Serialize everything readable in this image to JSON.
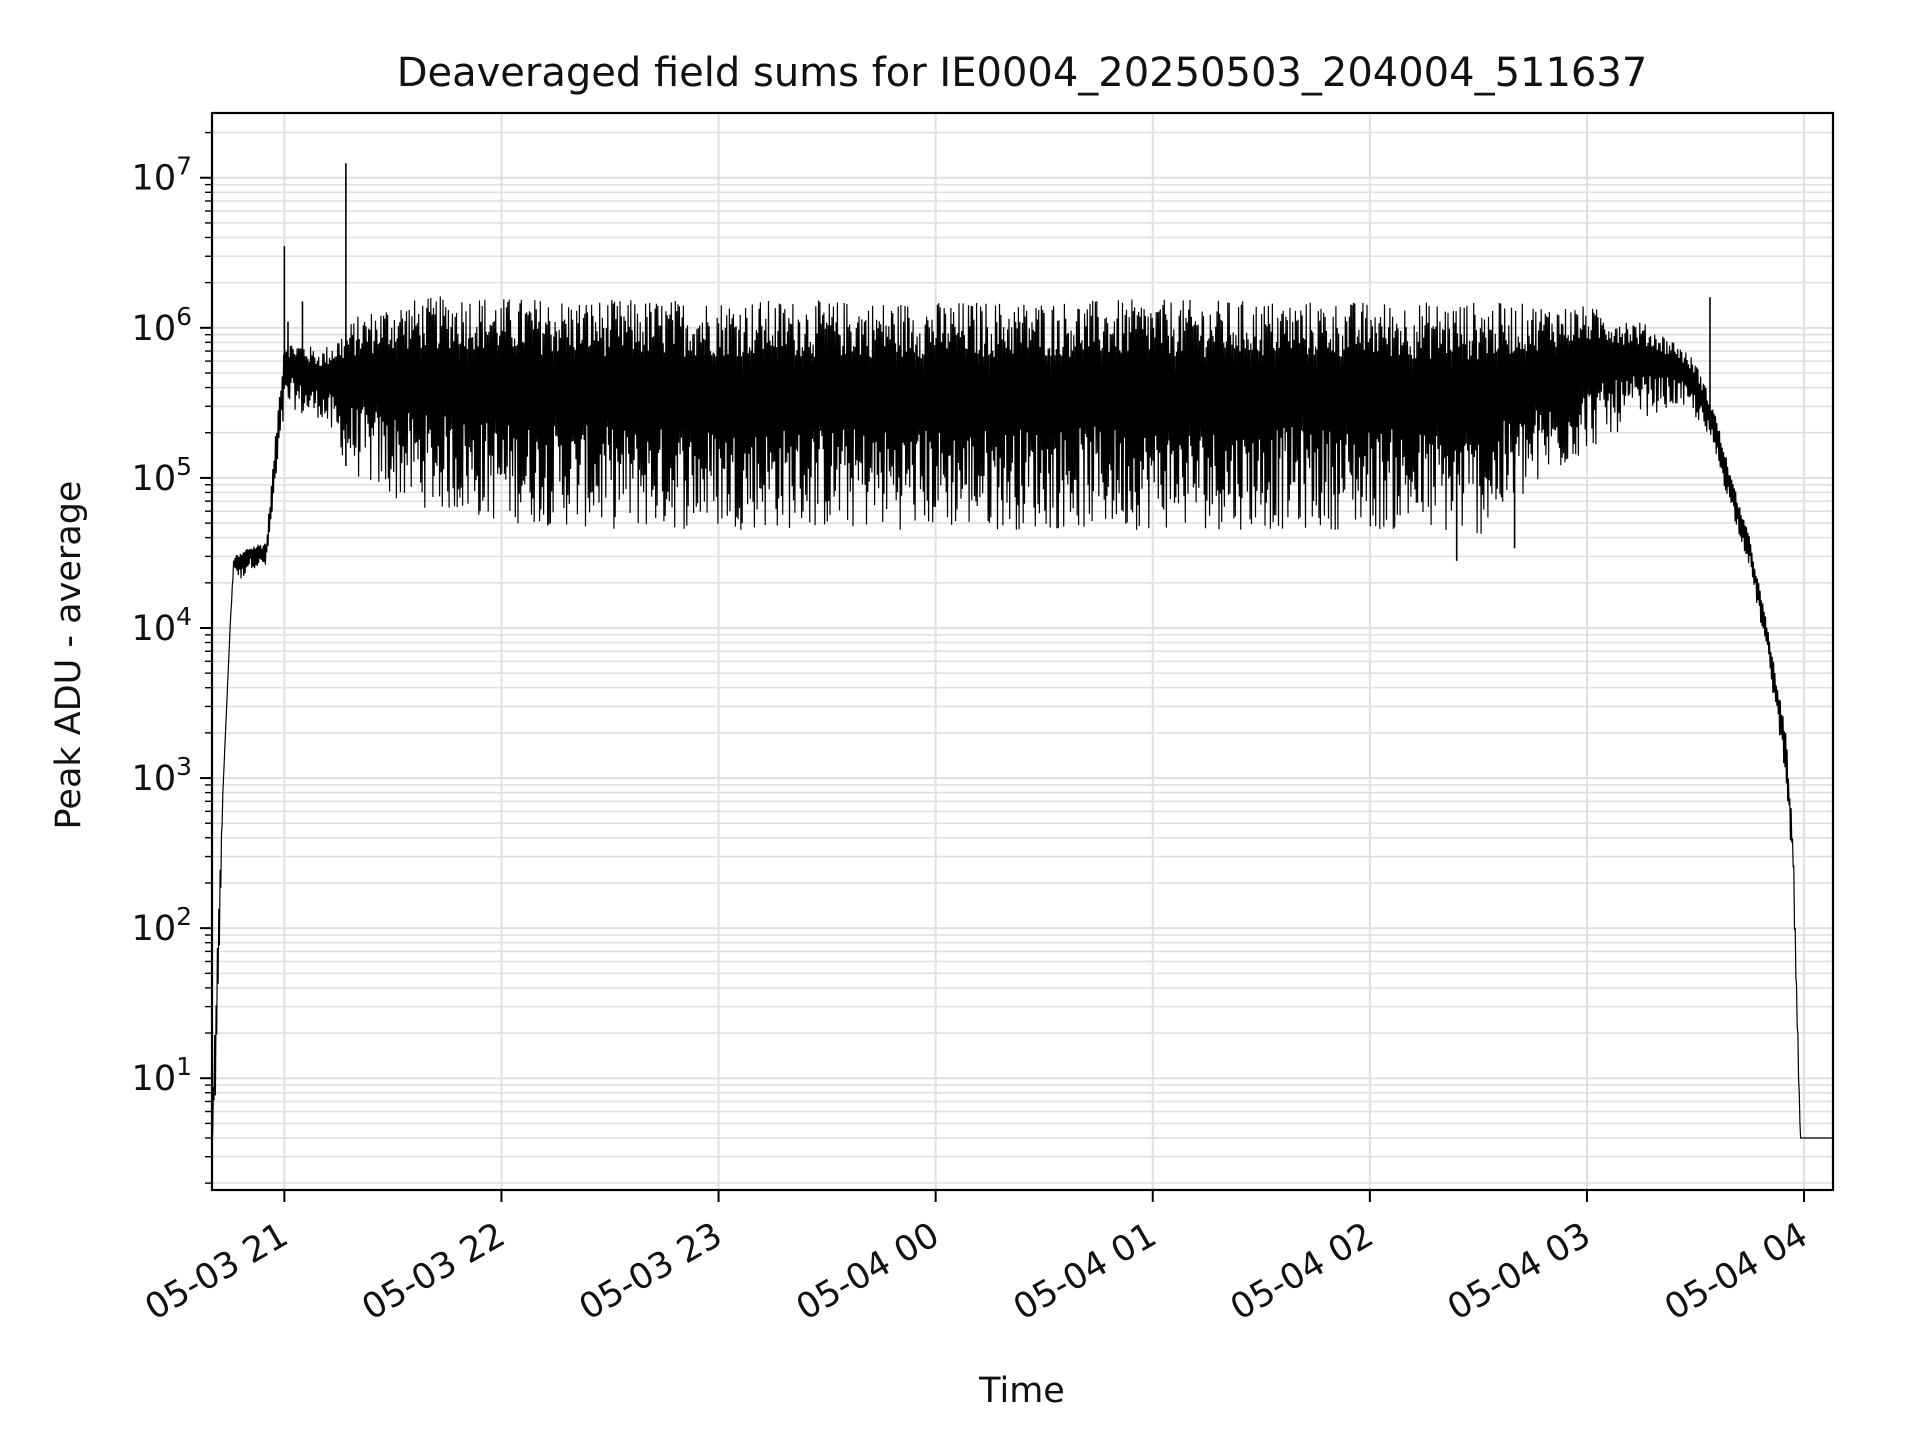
{
  "chart_data": {
    "type": "line",
    "title": "Deaveraged field sums for IE0004_20250503_204004_511637",
    "xlabel": "Time",
    "ylabel": "Peak ADU - average",
    "yscale": "log",
    "grid": true,
    "legend": "none",
    "line_color": "#000000",
    "grid_color": "#e0e0e0",
    "xlim": [
      "2025-05-03 20:40",
      "2025-05-04 04:08"
    ],
    "ylim": [
      1.8,
      27000000
    ],
    "x_ticks": [
      "05-03 21",
      "05-03 22",
      "05-03 23",
      "05-04 00",
      "05-04 01",
      "05-04 02",
      "05-04 03",
      "05-04 04"
    ],
    "y_ticks": [
      {
        "base": "10",
        "exp": "1",
        "value": 10
      },
      {
        "base": "10",
        "exp": "2",
        "value": 100
      },
      {
        "base": "10",
        "exp": "3",
        "value": 1000
      },
      {
        "base": "10",
        "exp": "4",
        "value": 10000
      },
      {
        "base": "10",
        "exp": "5",
        "value": 100000
      },
      {
        "base": "10",
        "exp": "6",
        "value": 1000000
      },
      {
        "base": "10",
        "exp": "7",
        "value": 10000000
      }
    ],
    "envelope": {
      "x": [
        "2025-05-03 20:40",
        "2025-05-03 20:41",
        "2025-05-03 20:43",
        "2025-05-03 20:45",
        "2025-05-03 20:46",
        "2025-05-03 20:48",
        "2025-05-03 20:50",
        "2025-05-03 20:55",
        "2025-05-03 21:00",
        "2025-05-03 21:02",
        "2025-05-03 21:05",
        "2025-05-03 21:10",
        "2025-05-03 21:15",
        "2025-05-03 21:20",
        "2025-05-03 21:30",
        "2025-05-03 21:50",
        "2025-05-03 22:00",
        "2025-05-03 22:30",
        "2025-05-03 23:00",
        "2025-05-04 00:00",
        "2025-05-04 01:00",
        "2025-05-04 02:00",
        "2025-05-04 02:30",
        "2025-05-04 03:00",
        "2025-05-04 03:15",
        "2025-05-04 03:25",
        "2025-05-04 03:30",
        "2025-05-04 03:35",
        "2025-05-04 03:40",
        "2025-05-04 03:45",
        "2025-05-04 03:50",
        "2025-05-04 03:55",
        "2025-05-04 03:57",
        "2025-05-04 03:58",
        "2025-05-04 03:59",
        "2025-05-04 04:08"
      ],
      "y_high": [
        4,
        40,
        800,
        10000,
        30000,
        32000,
        35000,
        38000,
        900000,
        800000,
        800000,
        700000,
        900000,
        1200000,
        1500000,
        1700000,
        1600000,
        1550000,
        1550000,
        1500000,
        1550000,
        1500000,
        1500000,
        1400000,
        1100000,
        800000,
        600000,
        300000,
        100000,
        40000,
        10000,
        2000,
        400,
        40,
        4,
        4
      ],
      "y_low": [
        4,
        4,
        800,
        10000,
        25000,
        20000,
        25000,
        25000,
        250000,
        300000,
        250000,
        250000,
        150000,
        100000,
        70000,
        55000,
        50000,
        45000,
        45000,
        45000,
        45000,
        45000,
        40000,
        150000,
        250000,
        300000,
        250000,
        150000,
        60000,
        25000,
        6000,
        1000,
        200,
        20,
        4,
        4
      ]
    },
    "spikes": [
      {
        "x": "2025-05-03 21:00",
        "y": 3500000
      },
      {
        "x": "2025-05-03 21:01",
        "y": 1100000
      },
      {
        "x": "2025-05-03 21:05",
        "y": 1500000
      },
      {
        "x": "2025-05-03 21:17",
        "y": 12500000
      },
      {
        "x": "2025-05-03 21:17",
        "y": 120000
      },
      {
        "x": "2025-05-04 02:24",
        "y": 28000
      },
      {
        "x": "2025-05-04 02:40",
        "y": 34000
      },
      {
        "x": "2025-05-04 03:34",
        "y": 1600000
      },
      {
        "x": "2025-05-04 03:34",
        "y": 280000
      }
    ]
  }
}
